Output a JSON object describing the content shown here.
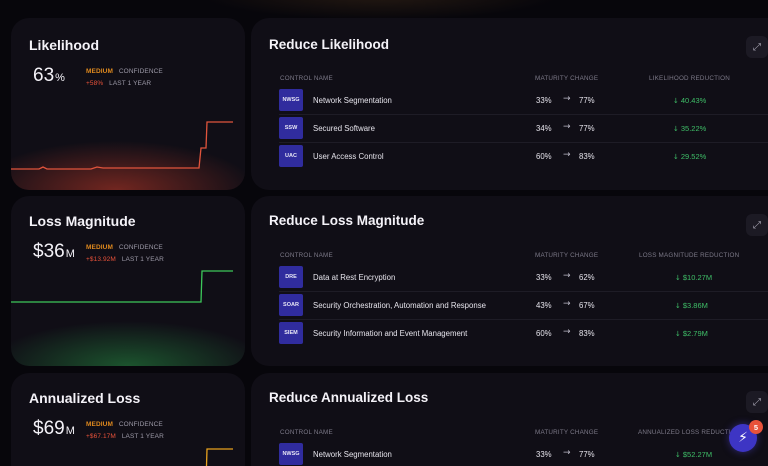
{
  "metrics": [
    {
      "title": "Likelihood",
      "value": "63",
      "unit": "%",
      "confidence_level": "MEDIUM",
      "confidence_label": "CONFIDENCE",
      "delta": "+58%",
      "period": "LAST 1 YEAR",
      "line_color": "#e0543c"
    },
    {
      "title": "Loss Magnitude",
      "value": "$36",
      "unit": "M",
      "confidence_level": "MEDIUM",
      "confidence_label": "CONFIDENCE",
      "delta": "+$13.92M",
      "period": "LAST 1 YEAR",
      "line_color": "#3cc85a"
    },
    {
      "title": "Annualized Loss",
      "value": "$69",
      "unit": "M",
      "confidence_level": "MEDIUM",
      "confidence_label": "CONFIDENCE",
      "delta": "+$67.17M",
      "period": "LAST 1 YEAR",
      "line_color": "#e8a21e"
    }
  ],
  "sections": [
    {
      "title": "Reduce Likelihood",
      "col_control": "CONTROL NAME",
      "col_maturity": "MATURITY CHANGE",
      "col_reduction": "LIKELIHOOD REDUCTION",
      "rows": [
        {
          "code": "NWSG",
          "name": "Network Segmentation",
          "from": "33%",
          "to": "77%",
          "reduction": "40.43%"
        },
        {
          "code": "SSW",
          "name": "Secured Software",
          "from": "34%",
          "to": "77%",
          "reduction": "35.22%"
        },
        {
          "code": "UAC",
          "name": "User Access Control",
          "from": "60%",
          "to": "83%",
          "reduction": "29.52%"
        }
      ]
    },
    {
      "title": "Reduce Loss Magnitude",
      "col_control": "CONTROL NAME",
      "col_maturity": "MATURITY CHANGE",
      "col_reduction": "LOSS MAGNITUDE REDUCTION",
      "rows": [
        {
          "code": "DRE",
          "name": "Data at Rest Encryption",
          "from": "33%",
          "to": "62%",
          "reduction": "$10.27M"
        },
        {
          "code": "SOAR",
          "name": "Security Orchestration, Automation and Response",
          "from": "43%",
          "to": "67%",
          "reduction": "$3.86M"
        },
        {
          "code": "SIEM",
          "name": "Security Information and Event Management",
          "from": "60%",
          "to": "83%",
          "reduction": "$2.79M"
        }
      ]
    },
    {
      "title": "Reduce Annualized Loss",
      "col_control": "CONTROL NAME",
      "col_maturity": "MATURITY CHANGE",
      "col_reduction": "ANNUALIZED LOSS REDUCTI",
      "rows": [
        {
          "code": "NWSG",
          "name": "Network Segmentation",
          "from": "33%",
          "to": "77%",
          "reduction": "$52.27M"
        }
      ]
    }
  ],
  "arrow_glyph": "→",
  "down_glyph": "↓",
  "expand_glyph": "⤢",
  "fab": {
    "icon": "bolt-icon",
    "glyph": "⚡",
    "badge": "5"
  }
}
